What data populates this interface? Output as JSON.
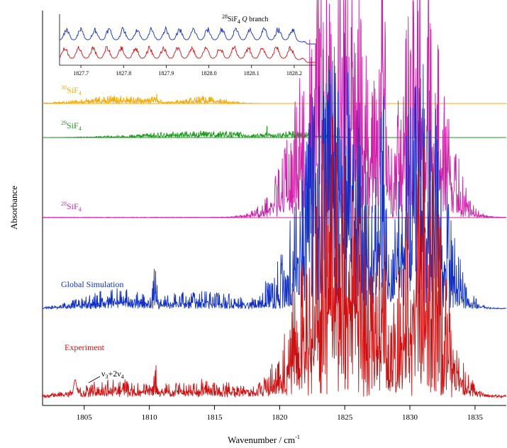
{
  "chart_data": {
    "type": "line",
    "xlabel": "Wavenumber / cm",
    "xlabel_sup": "-1",
    "ylabel": "Absorbance",
    "xlim": [
      1801.8,
      1837.4
    ],
    "xticks": [
      1805,
      1810,
      1815,
      1820,
      1825,
      1830,
      1835
    ],
    "band_annotation": {
      "base": "ν",
      "sub1": "3",
      "mid": "+2ν",
      "sub2": "4"
    },
    "series": [
      {
        "name_sup": "30",
        "name": "SiF",
        "name_sub": "4",
        "color": "#f5a800"
      },
      {
        "name_sup": "29",
        "name": "SiF",
        "name_sub": "4",
        "color": "#1a9a1a"
      },
      {
        "name_sup": "28",
        "name": "SiF",
        "name_sub": "4",
        "color": "#d020a8"
      },
      {
        "name": "Global Simulation",
        "color": "#1030c8"
      },
      {
        "name": "Experiment",
        "color": "#d01010"
      }
    ],
    "inset": {
      "title_sup": "28",
      "title_main": "SiF",
      "title_sub": "4",
      "title_branch": "Q",
      "title_end": "branch",
      "xlim": [
        1827.65,
        1828.25
      ],
      "xticks": [
        "1827.7",
        "1827.8",
        "1827.9",
        "1828.0",
        "1828.1",
        "1828.2"
      ],
      "traces": [
        {
          "name": "Global Simulation",
          "color": "#1030c8"
        },
        {
          "name": "Experiment",
          "color": "#d01010"
        }
      ]
    }
  }
}
